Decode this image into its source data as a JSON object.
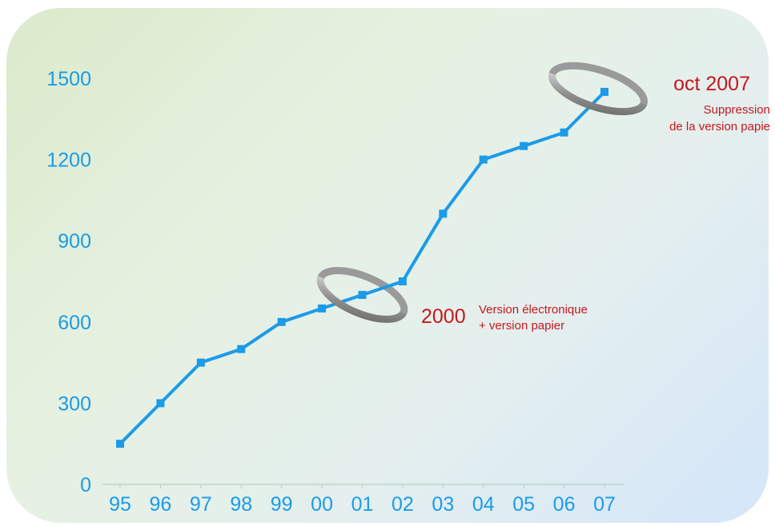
{
  "chart_data": {
    "type": "line",
    "title": "",
    "xlabel": "",
    "ylabel": "",
    "categories": [
      "95",
      "96",
      "97",
      "98",
      "99",
      "00",
      "01",
      "02",
      "03",
      "04",
      "05",
      "06",
      "07"
    ],
    "values": [
      150,
      300,
      450,
      500,
      600,
      650,
      700,
      750,
      1000,
      1200,
      1250,
      1300,
      1450
    ],
    "ylim": [
      0,
      1500
    ],
    "yticks": [
      "0",
      "300",
      "600",
      "900",
      "1200",
      "1500"
    ],
    "grid": false,
    "legend": "none",
    "line_color": "#1b9be8",
    "annotation_color": "#c8161e",
    "ring_color": "#8a8a8a",
    "annotations": [
      {
        "category": "01",
        "value": 700,
        "year": "2000",
        "lines": [
          "Version électronique",
          "+ version papier"
        ]
      },
      {
        "category": "07",
        "value": 1450,
        "year": "oct 2007",
        "lines": [
          "Suppression",
          "de la version papie"
        ]
      }
    ]
  }
}
